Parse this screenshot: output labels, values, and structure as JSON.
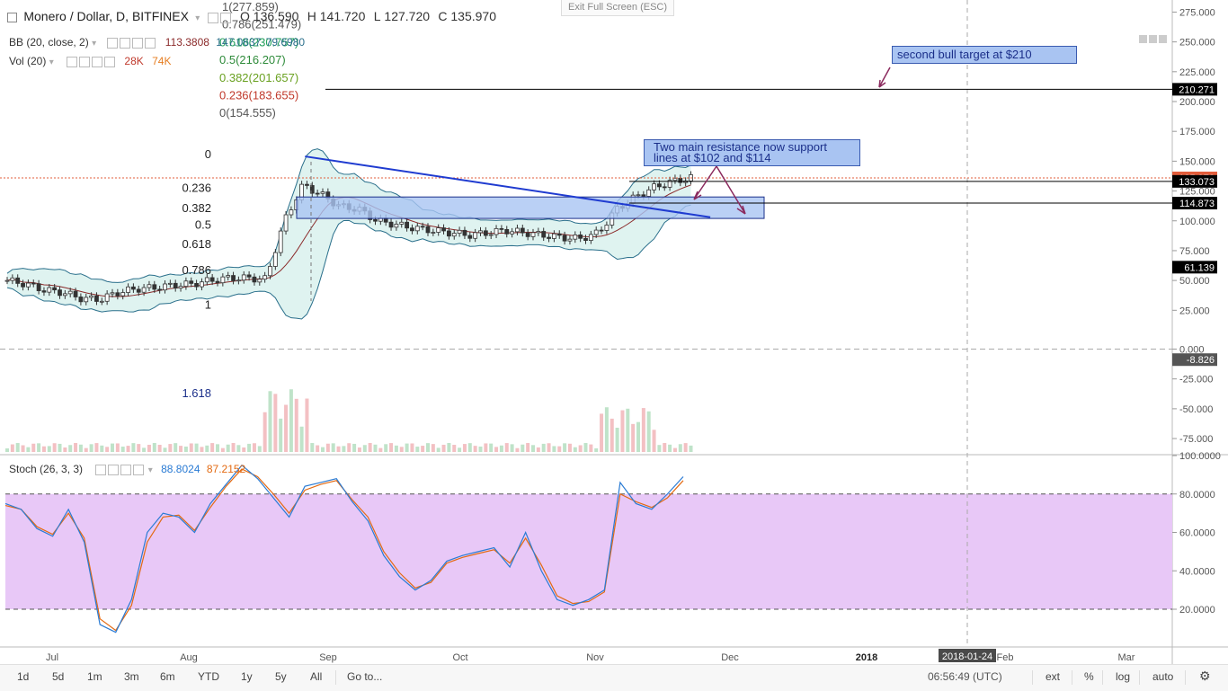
{
  "header": {
    "symbol": "Monero / Dollar, D, BITFINEX",
    "ohlc": [
      {
        "key": "O",
        "value": "136.590"
      },
      {
        "key": "H",
        "value": "141.720"
      },
      {
        "key": "L",
        "value": "127.720"
      },
      {
        "key": "C",
        "value": "135.970"
      }
    ],
    "bb_label": "BB (20, close, 2)",
    "bb_values": [
      "113.3808",
      "147.0637",
      "79.6980"
    ],
    "vol_label": "Vol (20)",
    "vol_values": [
      "28K",
      "74K"
    ],
    "stoch_label": "Stoch (26, 3, 3)",
    "stoch_values": [
      "88.8024",
      "87.2152"
    ],
    "exit_fullscreen": "Exit Full Screen (ESC)"
  },
  "toolbar": {
    "left": [
      "1d",
      "5d",
      "1m",
      "3m",
      "6m",
      "YTD",
      "1y",
      "5y",
      "All",
      "Go to..."
    ],
    "time": "06:56:49 (UTC)",
    "right": [
      "ext",
      "%",
      "log",
      "auto"
    ]
  },
  "chart_data": {
    "type": "candlestick",
    "x_ticks": [
      "Jul",
      "Aug",
      "Sep",
      "Oct",
      "Nov",
      "Dec",
      "2018",
      "2018-01-24",
      "Feb",
      "Mar"
    ],
    "price_axis": {
      "ticks": [
        "275.000",
        "250.000",
        "225.000",
        "200.000",
        "175.000",
        "150.000",
        "125.000",
        "100.000",
        "75.000",
        "50.000",
        "25.000",
        "0.000",
        "-25.000",
        "-50.000",
        "-75.000"
      ],
      "ylim": [
        -100,
        275
      ]
    },
    "price_badges": [
      {
        "label": "210.271",
        "value": 210.271,
        "color": "#000000"
      },
      {
        "label": "135.970",
        "value": 135.97,
        "color": "#e25d3b"
      },
      {
        "label": "133.073",
        "value": 133.073,
        "color": "#000000"
      },
      {
        "label": "114.873",
        "value": 114.873,
        "color": "#000000"
      },
      {
        "label": "61.139",
        "value": 61.139,
        "color": "#000000"
      },
      {
        "label": "-8.826",
        "value": -8.826,
        "color": "#555555"
      }
    ],
    "stoch_axis": {
      "ticks": [
        "100.0000",
        "80.0000",
        "60.0000",
        "40.0000",
        "20.0000"
      ],
      "ylim": [
        0,
        100
      ],
      "band": [
        20,
        80
      ]
    },
    "fib_levels": [
      {
        "label": "1(277.859)",
        "value": 277.859,
        "color": "#555555"
      },
      {
        "label": "0.786(251.479)",
        "value": 251.479,
        "color": "#555555"
      },
      {
        "label": "0.618(230.757)",
        "value": 230.757,
        "color": "#22a05a"
      },
      {
        "label": "0.5(216.207)",
        "value": 216.207,
        "color": "#2e8b3a"
      },
      {
        "label": "0.382(201.657)",
        "value": 201.657,
        "color": "#6aa121"
      },
      {
        "label": "0.236(183.655)",
        "value": 183.655,
        "color": "#c0392b"
      },
      {
        "label": "0(154.555)",
        "value": 154.555,
        "color": "#555555"
      }
    ],
    "fib_left_labels": [
      {
        "label": "0",
        "value": 154.555
      },
      {
        "label": "0.236",
        "value": 128
      },
      {
        "label": "0.382",
        "value": 111
      },
      {
        "label": "0.5",
        "value": 97
      },
      {
        "label": "0.618",
        "value": 81
      },
      {
        "label": "0.786",
        "value": 59
      },
      {
        "label": "1",
        "value": 30
      },
      {
        "label": "1.618",
        "value": -47
      }
    ],
    "horizontal_lines": [
      210.271,
      133.073,
      114.873
    ],
    "zone": [
      102,
      120
    ],
    "trendline": [
      {
        "x": "2017-08-27",
        "y": 154
      },
      {
        "x": "2017-11-27",
        "y": 103
      }
    ],
    "annotations": [
      {
        "text": "second bull target at $210"
      },
      {
        "text": "Two main resistance now support lines at $102 and $114"
      }
    ],
    "weekly_close": [
      50,
      47,
      42,
      40,
      35,
      34,
      40,
      43,
      44,
      46,
      47,
      50,
      52,
      52,
      51,
      100,
      130,
      122,
      112,
      110,
      100,
      97,
      94,
      92,
      90,
      88,
      90,
      92,
      90,
      88,
      86,
      85,
      90,
      110,
      120,
      128,
      133,
      136
    ],
    "stoch_k": [
      75,
      72,
      62,
      58,
      72,
      55,
      12,
      8,
      25,
      60,
      70,
      68,
      60,
      75,
      85,
      95,
      88,
      78,
      68,
      84,
      86,
      88,
      76,
      66,
      48,
      37,
      30,
      35,
      45,
      48,
      50,
      52,
      42,
      60,
      40,
      25,
      22,
      25,
      30,
      86,
      75,
      72,
      80,
      89
    ],
    "stoch_d": [
      74,
      72,
      63,
      59,
      70,
      57,
      15,
      9,
      22,
      55,
      68,
      69,
      61,
      73,
      84,
      93,
      89,
      80,
      70,
      82,
      85,
      87,
      77,
      68,
      50,
      39,
      31,
      34,
      44,
      47,
      49,
      51,
      44,
      57,
      43,
      27,
      23,
      24,
      29,
      80,
      76,
      73,
      78,
      87
    ]
  }
}
